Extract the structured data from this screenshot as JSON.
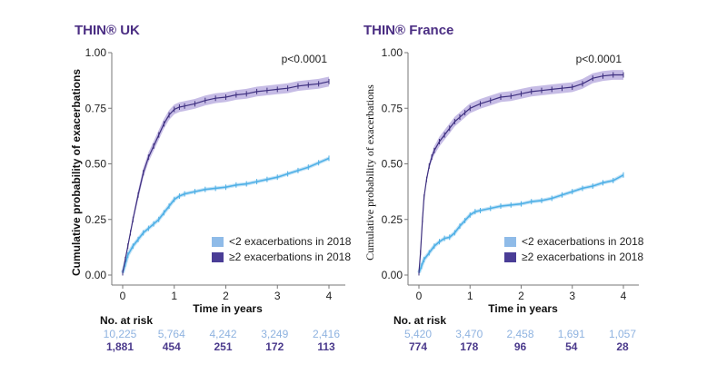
{
  "colors": {
    "title": "#4b2e83",
    "low_line": "#4fb0e6",
    "low_legend": "#8fbbe8",
    "high_line": "#3d2f7f",
    "high_band": "#b3a6dc",
    "high_legend": "#4a3d96",
    "risk_low": "#8fb3e0",
    "risk_high": "#4b3a8c"
  },
  "chart_data": [
    {
      "type": "line",
      "title": "THIN® UK",
      "xlabel": "Time in years",
      "ylabel": "Cumulative probability of exacerbations",
      "xlim": [
        0,
        4
      ],
      "ylim": [
        0,
        1
      ],
      "xticks": [
        "0",
        "1",
        "2",
        "3",
        "4"
      ],
      "yticks": [
        "0.00",
        "0.25",
        "0.50",
        "0.75",
        "1.00"
      ],
      "annotation": "p<0.0001",
      "legend": [
        "<2 exacerbations in 2018",
        "≥2 exacerbations in 2018"
      ],
      "legend_position": "bottom-right",
      "series": [
        {
          "name": "<2 exacerbations in 2018",
          "x": [
            0,
            0.05,
            0.1,
            0.2,
            0.3,
            0.4,
            0.5,
            0.6,
            0.7,
            0.8,
            0.9,
            1.0,
            1.1,
            1.2,
            1.4,
            1.6,
            1.8,
            2.0,
            2.2,
            2.4,
            2.6,
            2.8,
            3.0,
            3.2,
            3.4,
            3.6,
            3.8,
            4.0
          ],
          "y": [
            0.01,
            0.05,
            0.09,
            0.13,
            0.16,
            0.19,
            0.21,
            0.23,
            0.25,
            0.28,
            0.31,
            0.34,
            0.355,
            0.365,
            0.375,
            0.385,
            0.39,
            0.395,
            0.405,
            0.41,
            0.42,
            0.43,
            0.44,
            0.455,
            0.47,
            0.485,
            0.505,
            0.525
          ]
        },
        {
          "name": "≥2 exacerbations in 2018",
          "x": [
            0,
            0.05,
            0.1,
            0.15,
            0.2,
            0.3,
            0.4,
            0.5,
            0.6,
            0.7,
            0.8,
            0.9,
            1.0,
            1.1,
            1.2,
            1.4,
            1.6,
            1.8,
            2.0,
            2.2,
            2.4,
            2.6,
            2.8,
            3.0,
            3.2,
            3.4,
            3.6,
            3.8,
            4.0
          ],
          "y": [
            0.01,
            0.07,
            0.13,
            0.19,
            0.25,
            0.36,
            0.46,
            0.53,
            0.58,
            0.63,
            0.68,
            0.72,
            0.745,
            0.755,
            0.76,
            0.77,
            0.785,
            0.795,
            0.8,
            0.81,
            0.815,
            0.825,
            0.83,
            0.835,
            0.84,
            0.85,
            0.855,
            0.86,
            0.87
          ]
        }
      ],
      "at_risk": {
        "label": "No. at risk",
        "low": [
          "10,225",
          "5,764",
          "4,242",
          "3,249",
          "2,416"
        ],
        "high": [
          "1,881",
          "454",
          "251",
          "172",
          "113"
        ]
      }
    },
    {
      "type": "line",
      "title": "THIN® France",
      "xlabel": "Time in years",
      "ylabel": "Cumulative probability of exacerbations",
      "xlim": [
        0,
        4
      ],
      "ylim": [
        0,
        1
      ],
      "xticks": [
        "0",
        "1",
        "2",
        "3",
        "4"
      ],
      "yticks": [
        "0.00",
        "0.25",
        "0.50",
        "0.75",
        "1.00"
      ],
      "annotation": "p<0.0001",
      "legend": [
        "<2 exacerbations in 2018",
        "≥2 exacerbations in 2018"
      ],
      "legend_position": "bottom-right",
      "series": [
        {
          "name": "<2 exacerbations in 2018",
          "x": [
            0,
            0.05,
            0.1,
            0.2,
            0.3,
            0.4,
            0.5,
            0.6,
            0.7,
            0.8,
            0.9,
            1.0,
            1.1,
            1.2,
            1.4,
            1.6,
            1.8,
            2.0,
            2.2,
            2.4,
            2.6,
            2.8,
            3.0,
            3.2,
            3.4,
            3.6,
            3.8,
            4.0
          ],
          "y": [
            0.01,
            0.04,
            0.07,
            0.1,
            0.13,
            0.15,
            0.165,
            0.17,
            0.19,
            0.22,
            0.245,
            0.27,
            0.285,
            0.29,
            0.3,
            0.31,
            0.315,
            0.32,
            0.33,
            0.335,
            0.345,
            0.36,
            0.375,
            0.39,
            0.4,
            0.415,
            0.425,
            0.45
          ]
        },
        {
          "name": "≥2 exacerbations in 2018",
          "x": [
            0,
            0.03,
            0.07,
            0.1,
            0.15,
            0.2,
            0.25,
            0.3,
            0.4,
            0.5,
            0.6,
            0.7,
            0.8,
            0.9,
            1.0,
            1.2,
            1.4,
            1.6,
            1.8,
            2.0,
            2.2,
            2.4,
            2.6,
            2.8,
            3.0,
            3.2,
            3.4,
            3.6,
            3.8,
            4.0
          ],
          "y": [
            0.01,
            0.1,
            0.25,
            0.35,
            0.43,
            0.49,
            0.53,
            0.56,
            0.6,
            0.63,
            0.66,
            0.69,
            0.71,
            0.73,
            0.75,
            0.77,
            0.785,
            0.8,
            0.805,
            0.815,
            0.825,
            0.83,
            0.835,
            0.84,
            0.845,
            0.86,
            0.885,
            0.895,
            0.9,
            0.9
          ]
        }
      ],
      "at_risk": {
        "label": "No. at risk",
        "low": [
          "5,420",
          "3,470",
          "2,458",
          "1,691",
          "1,057"
        ],
        "high": [
          "774",
          "178",
          "96",
          "54",
          "28"
        ]
      }
    }
  ]
}
